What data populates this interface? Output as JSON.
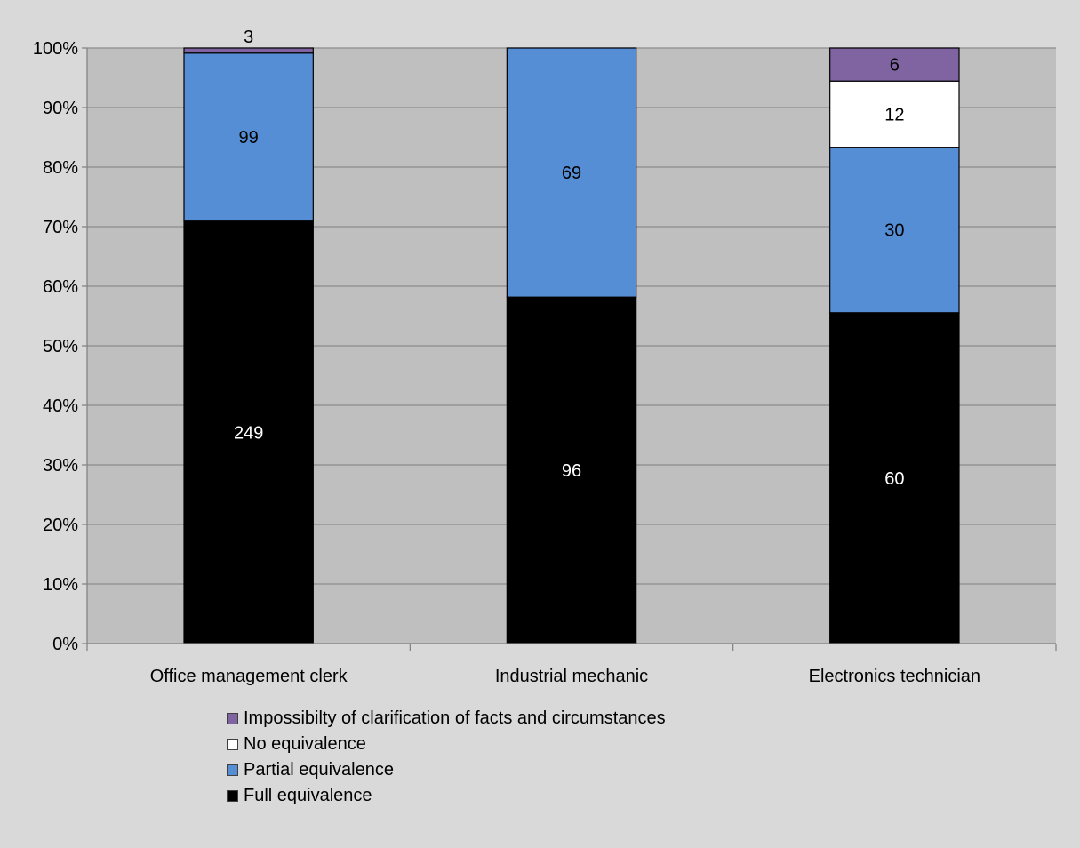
{
  "chart_data": {
    "type": "bar",
    "stacked": true,
    "normalized": true,
    "categories": [
      "Office management clerk",
      "Industrial mechanic",
      "Electronics technician"
    ],
    "series": [
      {
        "name": "Full equivalence",
        "values": [
          249,
          96,
          60
        ],
        "color": "#000000",
        "label_color": "#ffffff"
      },
      {
        "name": "Partial equivalence",
        "values": [
          99,
          69,
          30
        ],
        "color": "#558ed5",
        "label_color": "#000000"
      },
      {
        "name": "No equivalence",
        "values": [
          0,
          0,
          12
        ],
        "color": "#ffffff",
        "label_color": "#000000"
      },
      {
        "name": "Impossibilty of clarification of facts and circumstances",
        "values": [
          3,
          0,
          6
        ],
        "color": "#8064a2",
        "label_color": "#000000"
      }
    ],
    "yticks": [
      "0%",
      "10%",
      "20%",
      "30%",
      "40%",
      "50%",
      "60%",
      "70%",
      "80%",
      "90%",
      "100%"
    ],
    "ylim": [
      0,
      100
    ],
    "grid": true,
    "legend_position": "bottom",
    "colors": {
      "background": "#d9d9d9",
      "plot_area": "#bfbfbf",
      "gridline": "#8c8c8c"
    }
  }
}
